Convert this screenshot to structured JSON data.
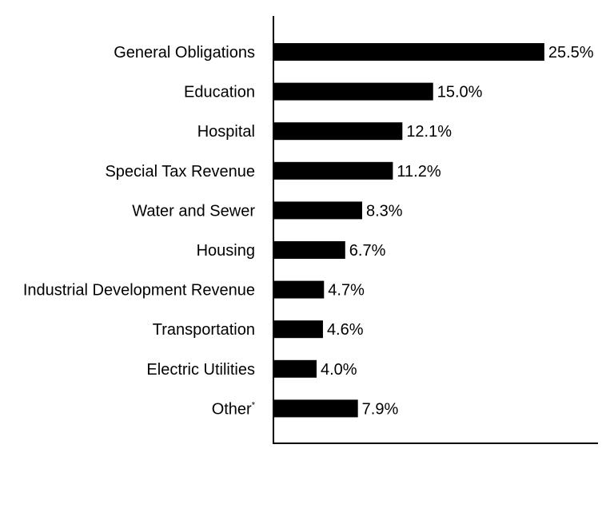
{
  "chart_data": {
    "type": "bar",
    "orientation": "horizontal",
    "categories": [
      "General Obligations",
      "Education",
      "Hospital",
      "Special Tax Revenue",
      "Water and Sewer",
      "Housing",
      "Industrial Development Revenue",
      "Transportation",
      "Electric Utilities",
      "Other"
    ],
    "category_superscripts": [
      "",
      "",
      "",
      "",
      "",
      "",
      "",
      "",
      "",
      "*"
    ],
    "values": [
      25.5,
      15.0,
      12.1,
      11.2,
      8.3,
      6.7,
      4.7,
      4.6,
      4.0,
      7.9
    ],
    "data_labels": [
      "25.5%",
      "15.0%",
      "12.1%",
      "11.2%",
      "8.3%",
      "6.7%",
      "4.7%",
      "4.6%",
      "4.0%",
      "7.9%"
    ],
    "xlim": [
      0,
      30.5
    ],
    "grid": false,
    "legend": "none",
    "bar_color": "#000000",
    "title": "",
    "xlabel": "",
    "ylabel": ""
  }
}
